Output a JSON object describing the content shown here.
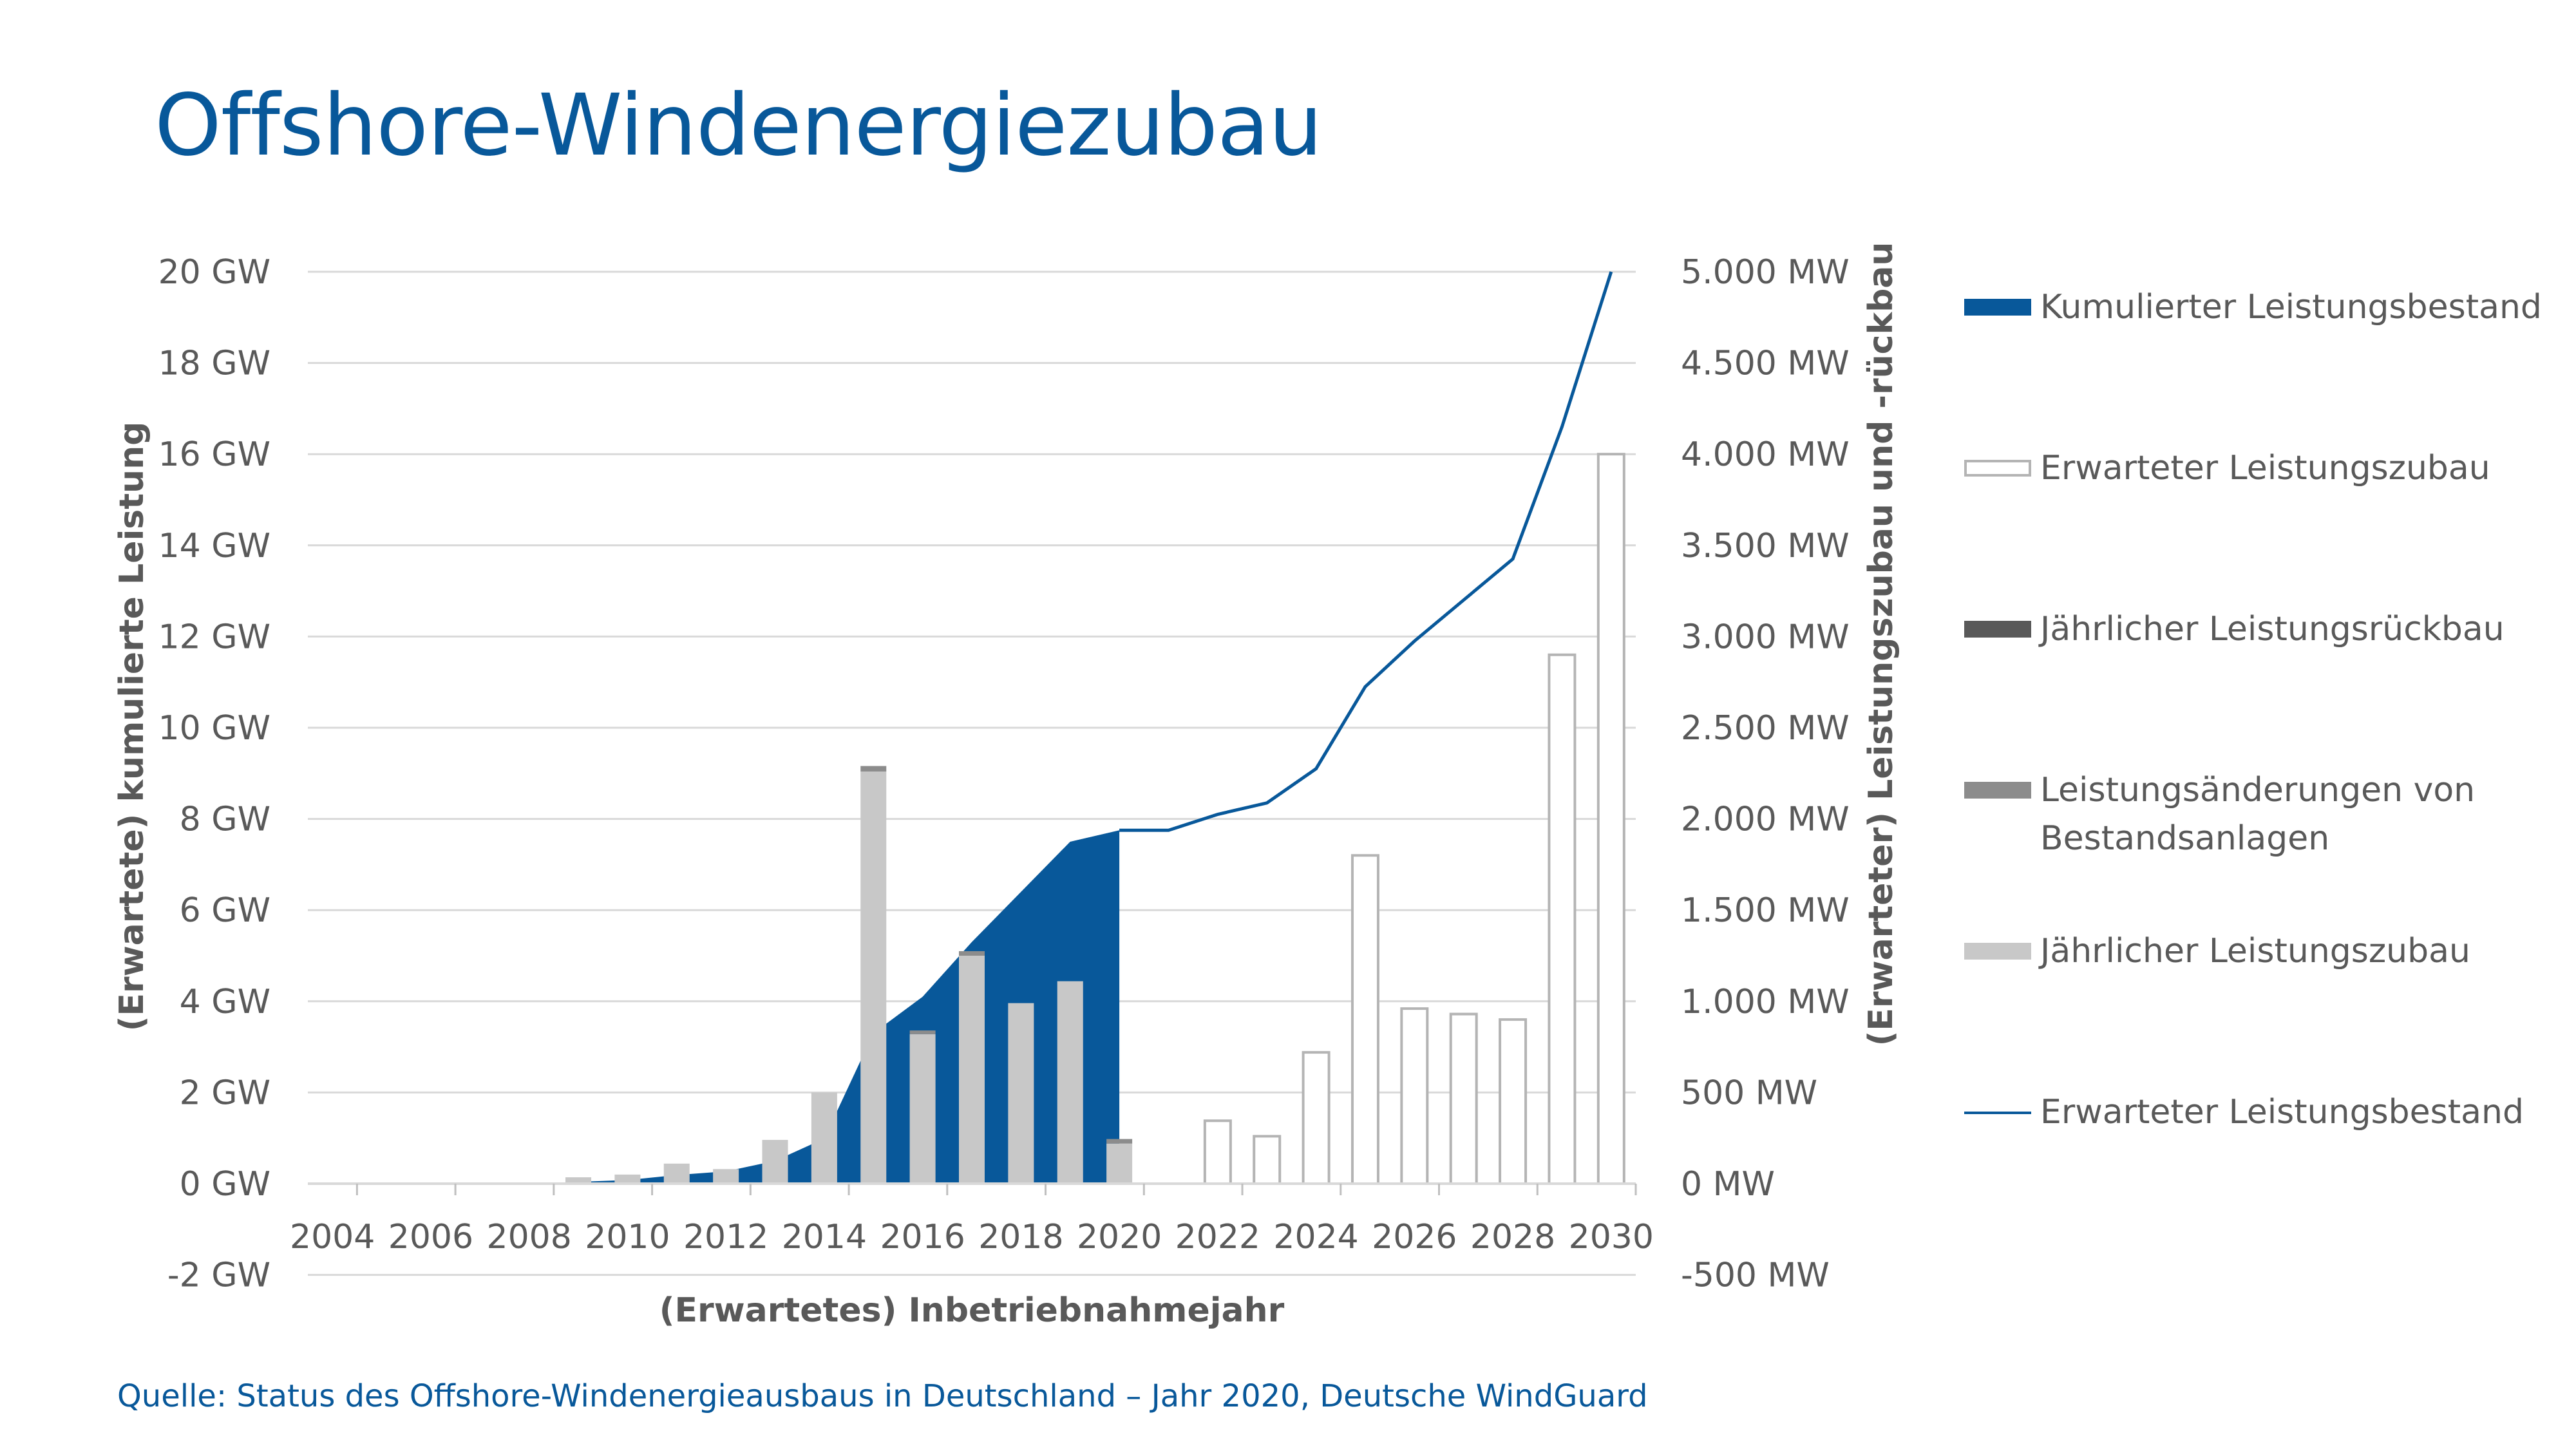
{
  "title": "Offshore-Windenergiezubau",
  "source": "Quelle: Status des Offshore-Windenergieausbaus in Deutschland – Jahr 2020, Deutsche WindGuard",
  "colors": {
    "cumulative": "#08589a",
    "annual_addition": "#c8c8c8",
    "modification": "#8c8c8c",
    "dismantling": "#595959",
    "expected_addition_fill": "#ffffff",
    "expected_addition_stroke": "#b4b4b4",
    "title": "#08589a",
    "text": "#595959",
    "gridline": "#d9d9d9"
  },
  "legend": [
    {
      "key": "cumulative",
      "label": "Kumulierter Leistungsbestand"
    },
    {
      "key": "expected_addition",
      "label": "Erwarteter Leistungszubau"
    },
    {
      "key": "dismantling",
      "label": "Jährlicher Leistungsrückbau"
    },
    {
      "key": "modification",
      "label": "Leistungsänderungen von Bestandsanlagen"
    },
    {
      "key": "annual_addition",
      "label": "Jährlicher Leistungszubau"
    },
    {
      "key": "expected_cumulative",
      "label": "Erwarteter Leistungsbestand"
    }
  ],
  "chart_data": {
    "type": "combo",
    "xlabel": "(Erwartetes) Inbetriebnahmejahr",
    "ylabel_left": "(Erwartete) kumulierte Leistung",
    "ylabel_right": "(Erwarteter) Leistungszubau und -rückbau",
    "y_left_range_gw": [
      -2,
      20
    ],
    "y_right_range_mw": [
      -500,
      5000
    ],
    "y_left_ticks": [
      "20 GW",
      "18 GW",
      "16 GW",
      "14 GW",
      "12 GW",
      "10 GW",
      "8 GW",
      "6 GW",
      "4 GW",
      "2 GW",
      "0 GW",
      "-2 GW"
    ],
    "y_right_ticks": [
      "5.000 MW",
      "4.500 MW",
      "4.000 MW",
      "3.500 MW",
      "3.000 MW",
      "2.500 MW",
      "2.000 MW",
      "1.500 MW",
      "1.000 MW",
      "500 MW",
      "0 MW",
      "-500 MW"
    ],
    "x_ticks": [
      "2004",
      "2006",
      "2008",
      "2010",
      "2012",
      "2014",
      "2016",
      "2018",
      "2020",
      "2022",
      "2024",
      "2026",
      "2028",
      "2030"
    ],
    "years": [
      2004,
      2005,
      2006,
      2007,
      2008,
      2009,
      2010,
      2011,
      2012,
      2013,
      2014,
      2015,
      2016,
      2017,
      2018,
      2019,
      2020,
      2021,
      2022,
      2023,
      2024,
      2025,
      2026,
      2027,
      2028,
      2029,
      2030
    ],
    "series": [
      {
        "name": "Kumulierter Leistungsbestand",
        "axis": "left",
        "unit": "GW",
        "type": "area",
        "x": [
          2009,
          2010,
          2011,
          2012,
          2013,
          2014,
          2015,
          2016,
          2017,
          2018,
          2019,
          2020
        ],
        "values": [
          0.04,
          0.08,
          0.19,
          0.27,
          0.5,
          0.99,
          3.3,
          4.1,
          5.3,
          6.4,
          7.5,
          7.75
        ]
      },
      {
        "name": "Jährlicher Leistungszubau",
        "axis": "right",
        "unit": "MW",
        "type": "bar",
        "x": [
          2009,
          2010,
          2011,
          2012,
          2013,
          2014,
          2015,
          2016,
          2017,
          2018,
          2019,
          2020
        ],
        "values": [
          35,
          50,
          110,
          80,
          240,
          500,
          2260,
          820,
          1250,
          990,
          1110,
          220
        ]
      },
      {
        "name": "Leistungsänderungen von Bestandsanlagen",
        "axis": "right",
        "unit": "MW",
        "type": "bar",
        "x": [
          2009,
          2010,
          2011,
          2012,
          2013,
          2014,
          2015,
          2016,
          2017,
          2018,
          2019,
          2020
        ],
        "values": [
          0,
          0,
          0,
          0,
          0,
          0,
          30,
          20,
          25,
          0,
          0,
          25
        ]
      },
      {
        "name": "Jährlicher Leistungsrückbau",
        "axis": "right",
        "unit": "MW",
        "type": "bar",
        "x": [
          2009,
          2010,
          2011,
          2012,
          2013,
          2014,
          2015,
          2016,
          2017,
          2018,
          2019,
          2020
        ],
        "values": [
          0,
          0,
          0,
          0,
          0,
          0,
          0,
          0,
          0,
          0,
          0,
          0
        ]
      },
      {
        "name": "Erwarteter Leistungszubau",
        "axis": "right",
        "unit": "MW",
        "type": "bar",
        "x": [
          2022,
          2023,
          2024,
          2025,
          2026,
          2027,
          2028,
          2029,
          2030
        ],
        "values": [
          345,
          260,
          720,
          1800,
          960,
          930,
          900,
          2900,
          4000
        ]
      },
      {
        "name": "Erwarteter Leistungsbestand",
        "axis": "left",
        "unit": "GW",
        "type": "line",
        "x": [
          2020,
          2021,
          2022,
          2023,
          2024,
          2025,
          2026,
          2027,
          2028,
          2029,
          2030
        ],
        "values": [
          7.75,
          7.75,
          8.1,
          8.35,
          9.1,
          10.9,
          11.9,
          12.8,
          13.7,
          16.6,
          20.0
        ]
      }
    ]
  }
}
